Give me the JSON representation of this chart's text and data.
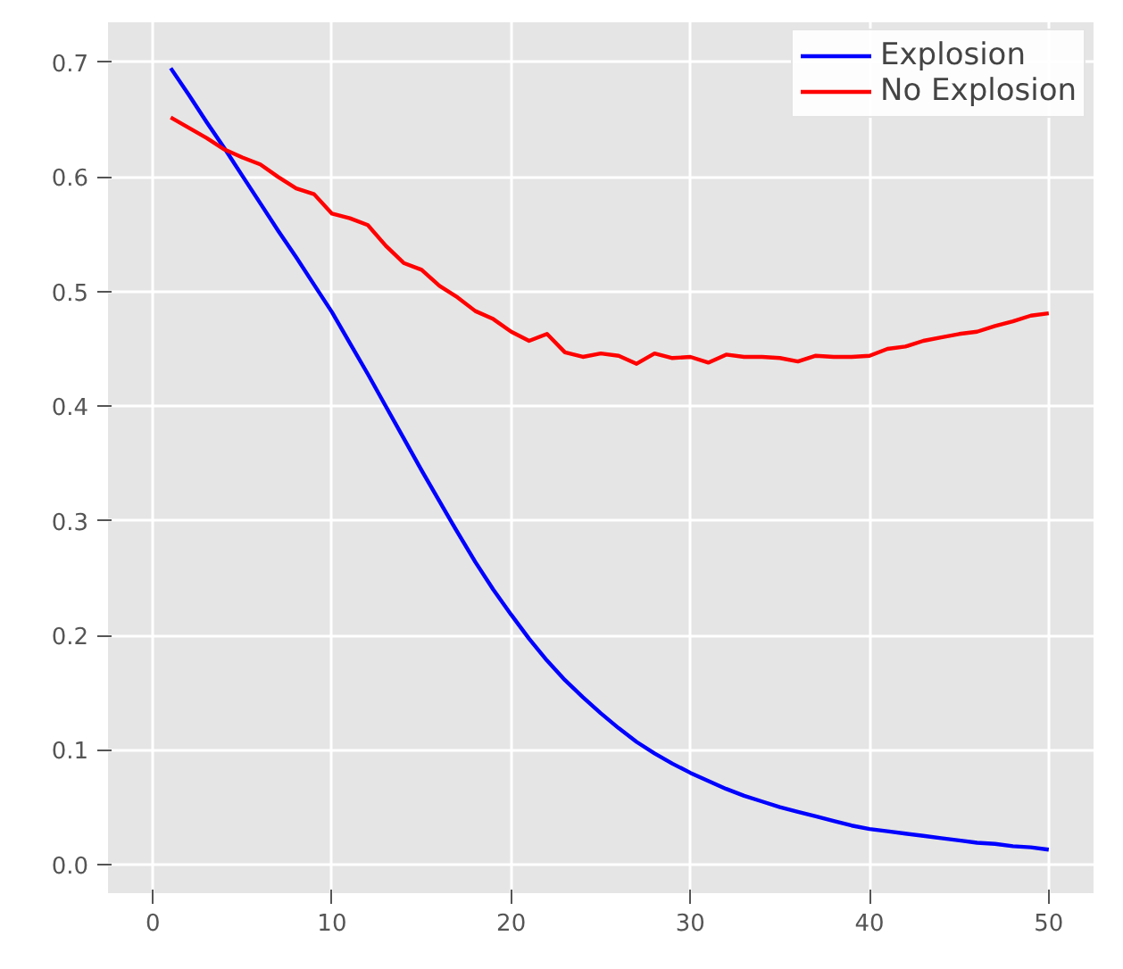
{
  "chart_data": {
    "type": "line",
    "x": [
      1,
      2,
      3,
      4,
      5,
      6,
      7,
      8,
      9,
      10,
      11,
      12,
      13,
      14,
      15,
      16,
      17,
      18,
      19,
      20,
      21,
      22,
      23,
      24,
      25,
      26,
      27,
      28,
      29,
      30,
      31,
      32,
      33,
      34,
      35,
      36,
      37,
      38,
      39,
      40,
      41,
      42,
      43,
      44,
      45,
      46,
      47,
      48,
      49,
      50
    ],
    "series": [
      {
        "name": "Explosion",
        "color": "#0000ff",
        "values": [
          0.695,
          0.672,
          0.648,
          0.625,
          0.601,
          0.577,
          0.553,
          0.53,
          0.506,
          0.482,
          0.455,
          0.428,
          0.4,
          0.372,
          0.344,
          0.317,
          0.29,
          0.264,
          0.24,
          0.218,
          0.197,
          0.178,
          0.161,
          0.146,
          0.132,
          0.119,
          0.107,
          0.097,
          0.088,
          0.08,
          0.073,
          0.066,
          0.06,
          0.055,
          0.05,
          0.046,
          0.042,
          0.038,
          0.034,
          0.031,
          0.029,
          0.027,
          0.025,
          0.023,
          0.021,
          0.019,
          0.018,
          0.016,
          0.015,
          0.013
        ]
      },
      {
        "name": "No Explosion",
        "color": "#ff0000",
        "values": [
          0.652,
          0.643,
          0.634,
          0.624,
          0.617,
          0.611,
          0.6,
          0.59,
          0.585,
          0.568,
          0.564,
          0.558,
          0.54,
          0.525,
          0.519,
          0.505,
          0.495,
          0.483,
          0.476,
          0.465,
          0.457,
          0.463,
          0.447,
          0.443,
          0.446,
          0.444,
          0.437,
          0.446,
          0.442,
          0.443,
          0.438,
          0.445,
          0.443,
          0.443,
          0.442,
          0.439,
          0.444,
          0.443,
          0.443,
          0.444,
          0.45,
          0.452,
          0.457,
          0.46,
          0.463,
          0.465,
          0.47,
          0.474,
          0.479,
          0.481
        ]
      }
    ],
    "xlim": [
      -2.5,
      52.5
    ],
    "ylim": [
      -0.025,
      0.735
    ],
    "xticks": [
      0,
      10,
      20,
      30,
      40,
      50
    ],
    "yticks": [
      {
        "value": 0,
        "label": "0.0"
      },
      {
        "value": 0.1,
        "label": "0.1"
      },
      {
        "value": 0.2,
        "label": "0.2"
      },
      {
        "value": 0.3,
        "label": "0.3"
      },
      {
        "value": 0.4,
        "label": "0.4"
      },
      {
        "value": 0.5,
        "label": "0.5"
      },
      {
        "value": 0.6,
        "label": "0.6"
      },
      {
        "value": 0.7,
        "label": "0.7"
      }
    ],
    "grid": true,
    "legend": "top right",
    "line_style": "solid"
  }
}
